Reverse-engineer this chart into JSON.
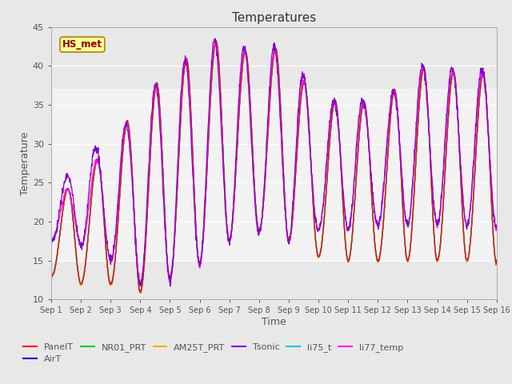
{
  "title": "Temperatures",
  "xlabel": "Time",
  "ylabel": "Temperature",
  "ylim": [
    10,
    45
  ],
  "xlim": [
    0,
    15
  ],
  "xtick_labels": [
    "Sep 1",
    "Sep 2",
    "Sep 3",
    "Sep 4",
    "Sep 5",
    "Sep 6",
    "Sep 7",
    "Sep 8",
    "Sep 9",
    "Sep 10",
    "Sep 11",
    "Sep 12",
    "Sep 13",
    "Sep 14",
    "Sep 15",
    "Sep 16"
  ],
  "xtick_positions": [
    0,
    1,
    2,
    3,
    4,
    5,
    6,
    7,
    8,
    9,
    10,
    11,
    12,
    13,
    14,
    15
  ],
  "ytick_positions": [
    10,
    15,
    20,
    25,
    30,
    35,
    40,
    45
  ],
  "shading_ylim": [
    15,
    37
  ],
  "series_colors": {
    "PanelT": "#ff0000",
    "AirT": "#0000cc",
    "NR01_PRT": "#00cc00",
    "AM25T_PRT": "#ffaa00",
    "Tsonic": "#8800cc",
    "li75_t": "#00cccc",
    "li77_temp": "#ff00ff"
  },
  "annotation": "HS_met",
  "fig_facecolor": "#e8e8e8",
  "axes_facecolor": "#e8e8e8",
  "grid_color": "#ffffff",
  "label_color": "#555555",
  "tick_color": "#555555",
  "title_color": "#333333"
}
